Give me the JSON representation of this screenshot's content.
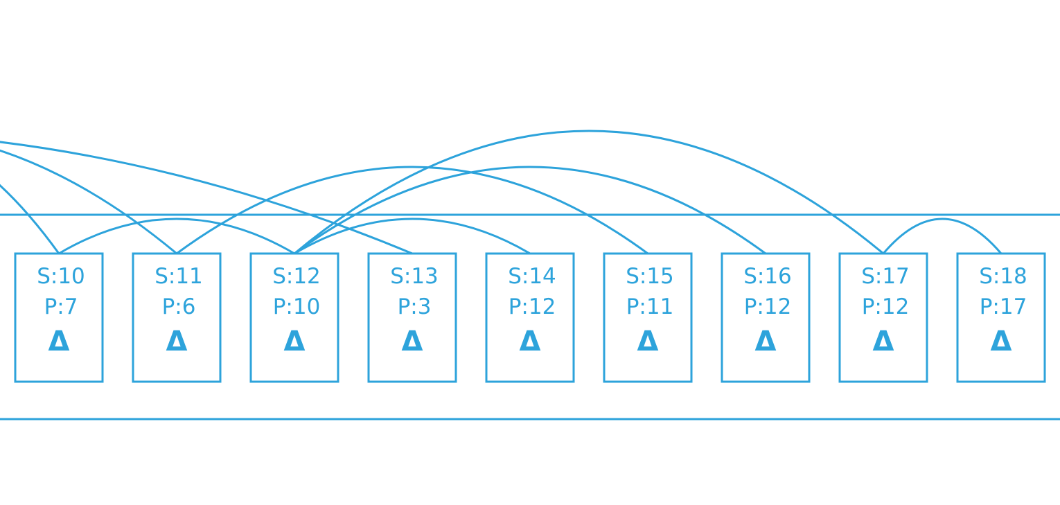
{
  "theme": {
    "stroke_color": "#2da3db",
    "background": "#ffffff"
  },
  "nodes": [
    {
      "s_label": "S:10",
      "p_label": "P:7",
      "symbol": "Δ",
      "s": 10,
      "p": 7
    },
    {
      "s_label": "S:11",
      "p_label": "P:6",
      "symbol": "Δ",
      "s": 11,
      "p": 6
    },
    {
      "s_label": "S:12",
      "p_label": "P:10",
      "symbol": "Δ",
      "s": 12,
      "p": 10
    },
    {
      "s_label": "S:13",
      "p_label": "P:3",
      "symbol": "Δ",
      "s": 13,
      "p": 3
    },
    {
      "s_label": "S:14",
      "p_label": "P:12",
      "symbol": "Δ",
      "s": 14,
      "p": 12
    },
    {
      "s_label": "S:15",
      "p_label": "P:11",
      "symbol": "Δ",
      "s": 15,
      "p": 11
    },
    {
      "s_label": "S:16",
      "p_label": "P:12",
      "symbol": "Δ",
      "s": 16,
      "p": 12
    },
    {
      "s_label": "S:17",
      "p_label": "P:12",
      "symbol": "Δ",
      "s": 17,
      "p": 12
    },
    {
      "s_label": "S:18",
      "p_label": "P:17",
      "symbol": "Δ",
      "s": 18,
      "p": 17
    }
  ],
  "edges": [
    {
      "from": 10,
      "to": 7
    },
    {
      "from": 11,
      "to": 6
    },
    {
      "from": 12,
      "to": 10
    },
    {
      "from": 13,
      "to": 3
    },
    {
      "from": 14,
      "to": 12
    },
    {
      "from": 15,
      "to": 11
    },
    {
      "from": 16,
      "to": 12
    },
    {
      "from": 17,
      "to": 12
    },
    {
      "from": 18,
      "to": 17
    }
  ]
}
